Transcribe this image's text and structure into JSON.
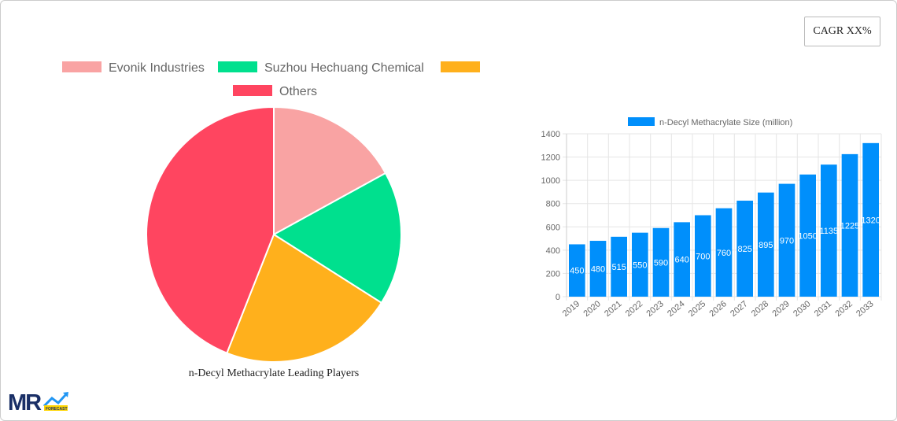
{
  "cagr_label": "CAGR XX%",
  "chart_data": [
    {
      "type": "pie",
      "title": "n-Decyl Methacrylate Leading Players",
      "legend_position": "top",
      "slices": [
        {
          "name": "Evonik Industries",
          "value": 17,
          "color": "#f9a3a3"
        },
        {
          "name": "Suzhou Hechuang Chemical",
          "value": 17,
          "color": "#00e08e"
        },
        {
          "name": "",
          "value": 22,
          "color": "#ffb01c"
        },
        {
          "name": "Others",
          "value": 44,
          "color": "#ff4560"
        }
      ]
    },
    {
      "type": "bar",
      "legend": "n-Decyl Methacrylate Size (million)",
      "color": "#008ffb",
      "categories": [
        "2019",
        "2020",
        "2021",
        "2022",
        "2023",
        "2024",
        "2025",
        "2026",
        "2027",
        "2028",
        "2029",
        "2030",
        "2031",
        "2032",
        "2033"
      ],
      "values": [
        450,
        480,
        515,
        550,
        590,
        640,
        700,
        760,
        825,
        895,
        970,
        1050,
        1135,
        1225,
        1320
      ],
      "ylim": [
        0,
        1400
      ],
      "yticks": [
        0,
        200,
        400,
        600,
        800,
        1000,
        1200,
        1400
      ],
      "grid": true,
      "legend_position": "top"
    }
  ],
  "logo": {
    "text": "MR",
    "sub": "FORECAST"
  }
}
